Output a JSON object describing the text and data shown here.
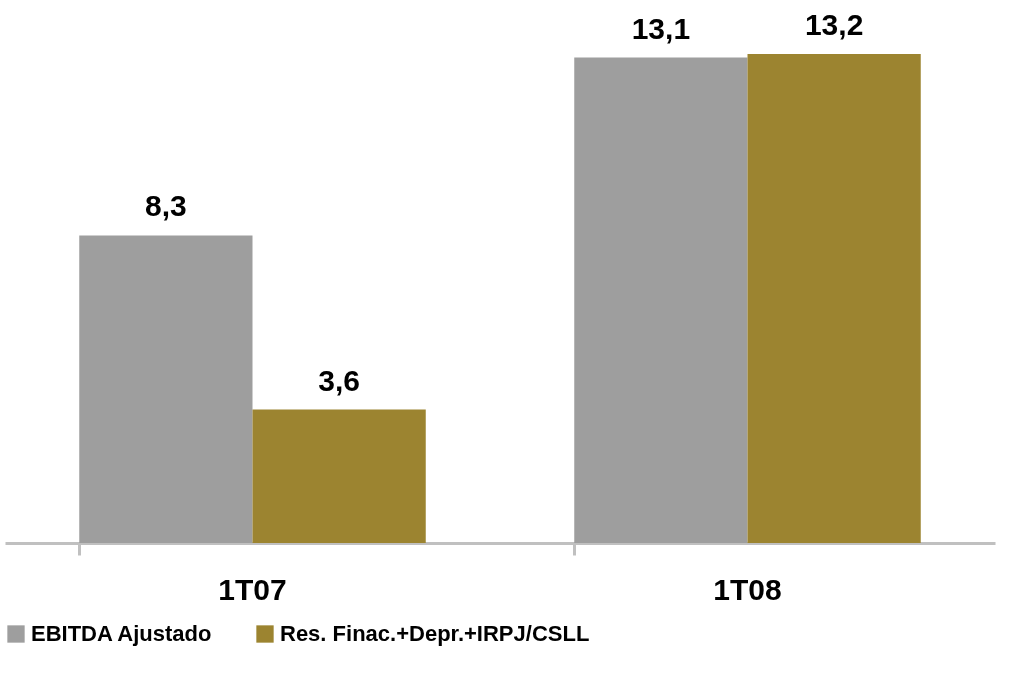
{
  "chart_data": {
    "type": "bar",
    "categories": [
      "1T07",
      "1T08"
    ],
    "series": [
      {
        "name": "EBITDA Ajustado",
        "color": "#9e9e9e",
        "values": [
          8.3,
          13.1
        ],
        "value_labels": [
          "8,3",
          "13,1"
        ]
      },
      {
        "name": "Res. Finac.+Depr.+IRPJ/CSLL",
        "color": "#9c8430",
        "values": [
          3.6,
          13.2
        ],
        "value_labels": [
          "3,6",
          "13,2"
        ]
      }
    ],
    "legend": "bottom",
    "grid": false
  }
}
